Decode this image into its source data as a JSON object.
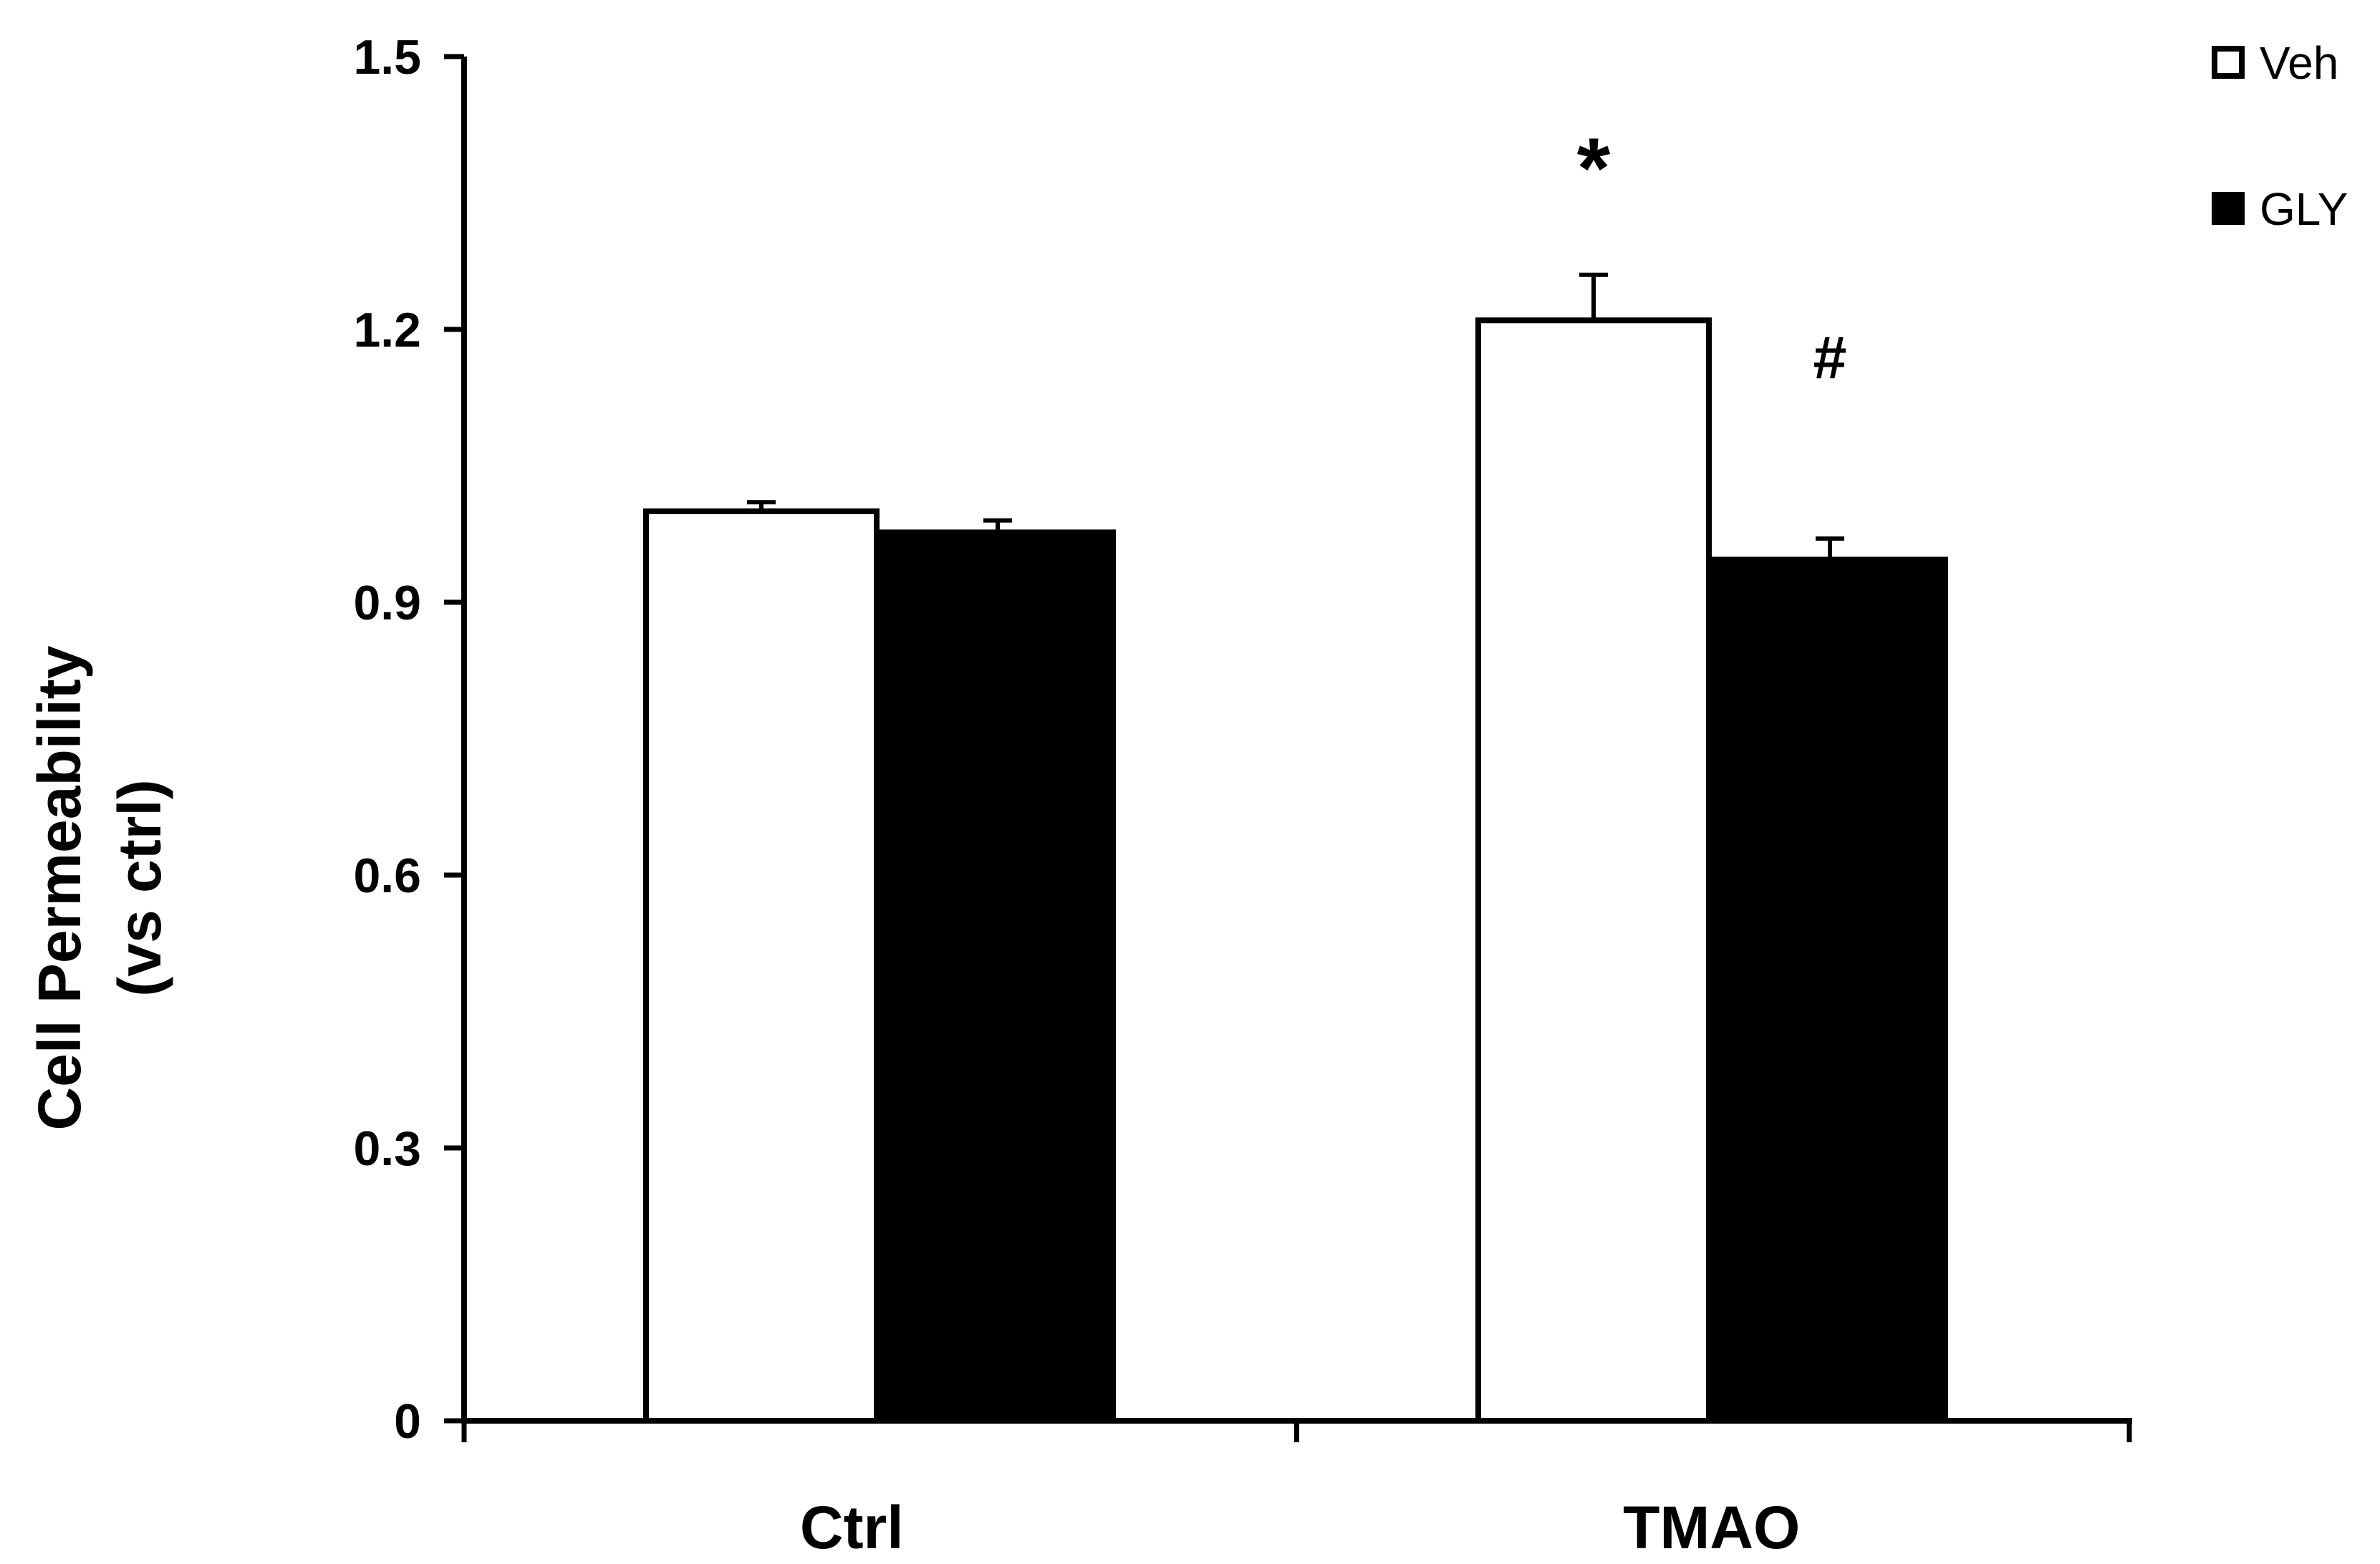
{
  "chart_data": {
    "type": "bar",
    "title": "",
    "xlabel": "",
    "ylabel": "Cell  Permeability (vs ctrl)",
    "ylabel_lines": [
      "Cell  Permeability",
      "(vs ctrl)"
    ],
    "categories": [
      "Ctrl",
      "TMAO"
    ],
    "series": [
      {
        "name": "Veh",
        "fill": "#ffffff",
        "stroke": "#000000",
        "values": [
          1.0,
          1.21
        ],
        "errors": [
          0.01,
          0.05
        ]
      },
      {
        "name": "GLY",
        "fill": "#000000",
        "stroke": "#000000",
        "values": [
          0.98,
          0.95
        ],
        "errors": [
          0.01,
          0.02
        ]
      }
    ],
    "ylim": [
      0,
      1.5
    ],
    "yticks": [
      0,
      0.3,
      0.6,
      0.9,
      1.2,
      1.5
    ],
    "ytick_labels": [
      "0",
      "0.3",
      "0.6",
      "0.9",
      "1.2",
      "1.5"
    ],
    "grid": false,
    "legend_position": "top-right",
    "annotations": [
      {
        "text": "*",
        "category": "TMAO",
        "series": "Veh",
        "y": 1.4
      },
      {
        "text": "#",
        "category": "TMAO",
        "series": "GLY",
        "y": 1.17
      }
    ]
  }
}
